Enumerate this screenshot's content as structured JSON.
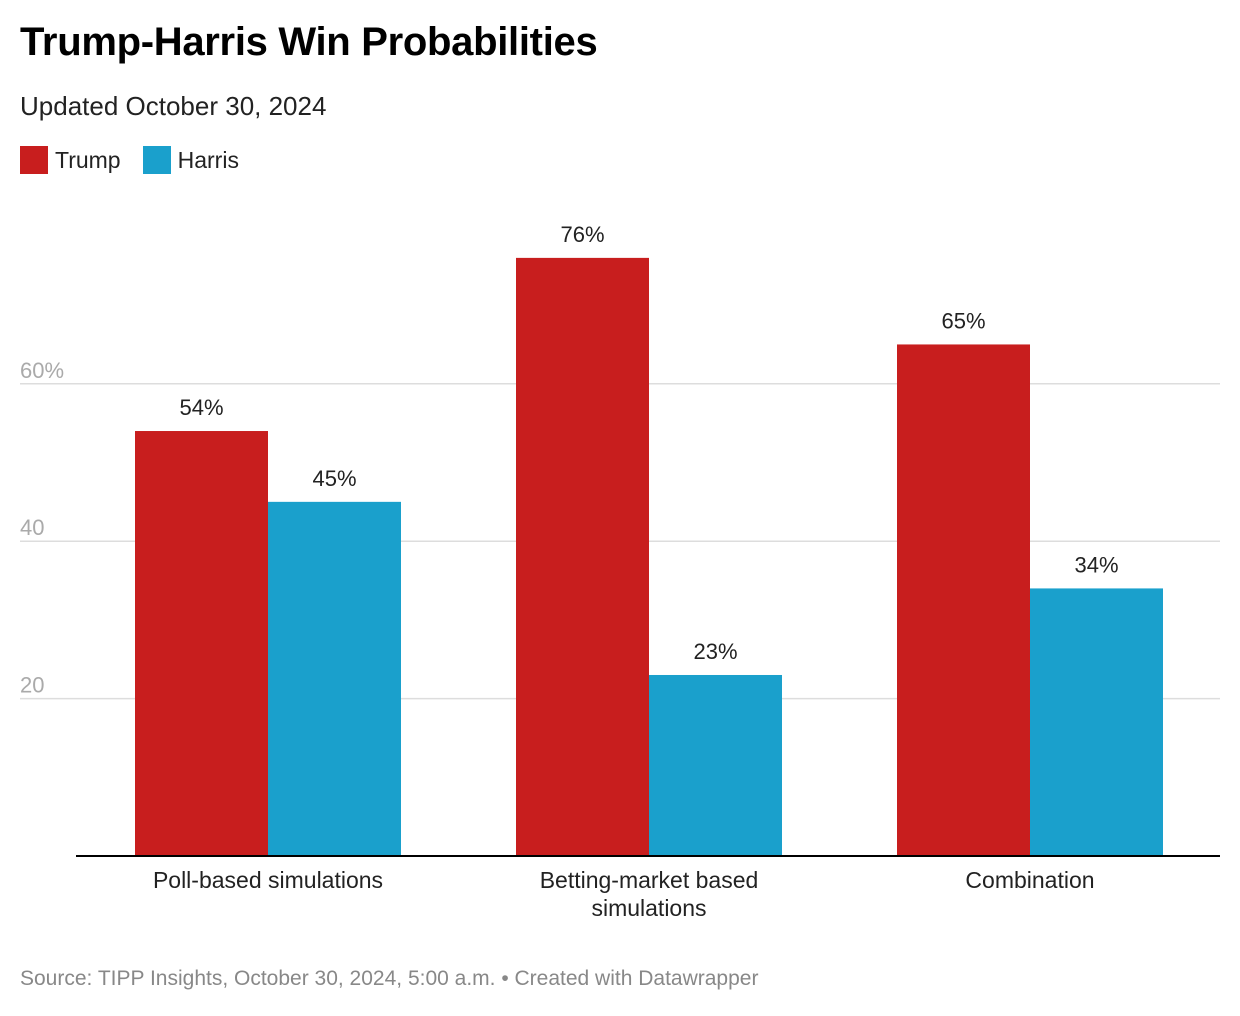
{
  "title": "Trump-Harris Win Probabilities",
  "subtitle": "Updated October 30, 2024",
  "footer": "Source: TIPP Insights, October 30, 2024, 5:00 a.m. • Created with Datawrapper",
  "colors": {
    "trump": "#c81e1e",
    "harris": "#1aa0cc",
    "grid": "#dddddd",
    "axis": "#000000",
    "tick": "#aaaaaa"
  },
  "legend": [
    {
      "label": "Trump",
      "color": "#c81e1e"
    },
    {
      "label": "Harris",
      "color": "#1aa0cc"
    }
  ],
  "chart_data": {
    "type": "bar",
    "title": "Trump-Harris Win Probabilities",
    "subtitle": "Updated October 30, 2024",
    "categories": [
      [
        "Poll-based simulations"
      ],
      [
        "Betting-market based",
        "simulations"
      ],
      [
        "Combination"
      ]
    ],
    "series": [
      {
        "name": "Trump",
        "values": [
          54,
          76,
          65
        ],
        "labels": [
          "54%",
          "76%",
          "65%"
        ],
        "color": "#c81e1e"
      },
      {
        "name": "Harris",
        "values": [
          45,
          23,
          34
        ],
        "labels": [
          "45%",
          "23%",
          "34%"
        ],
        "color": "#1aa0cc"
      }
    ],
    "yticks": [
      {
        "value": 20,
        "label": "20"
      },
      {
        "value": 40,
        "label": "40"
      },
      {
        "value": 60,
        "label": "60%"
      }
    ],
    "ylim": [
      0,
      80
    ],
    "grid": true,
    "legend_position": "top-left"
  }
}
